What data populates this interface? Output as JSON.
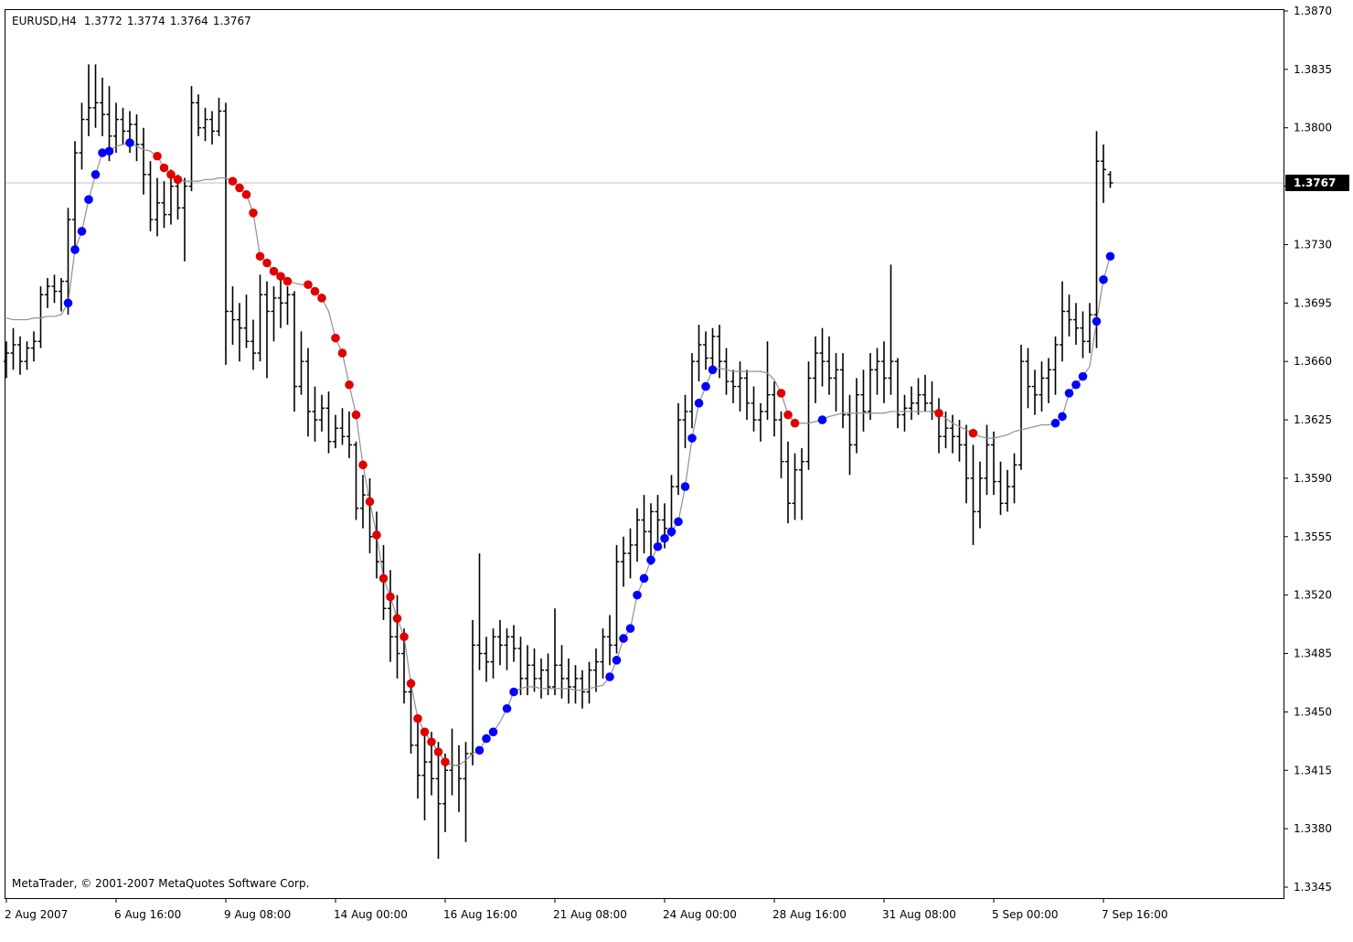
{
  "chart_data": {
    "type": "ohlc",
    "title": "EURUSD,H4",
    "copyright": "MetaTrader, © 2001-2007 MetaQuotes Software Corp.",
    "bar_color": "#000000",
    "price_line_color": "#c0c0c0",
    "ylim": [
      1.3345,
      1.387
    ],
    "yticks": [
      {
        "value": 1.387,
        "label": "1.3870"
      },
      1.3835,
      {
        "value": 1.38,
        "label": "1.3800"
      },
      1.3765,
      {
        "value": 1.373,
        "label": "1.3730"
      },
      1.3695,
      {
        "value": 1.366,
        "label": "1.3660"
      },
      1.3625,
      {
        "value": 1.359,
        "label": "1.3590"
      },
      1.3555,
      {
        "value": 1.352,
        "label": "1.3520"
      },
      1.3485,
      {
        "value": 1.345,
        "label": "1.3450"
      },
      1.3415,
      {
        "value": 1.338,
        "label": "1.3380"
      },
      1.3345
    ],
    "categories": [
      "2 Aug 2007",
      null,
      null,
      null,
      null,
      null,
      null,
      null,
      null,
      null,
      null,
      null,
      null,
      null,
      null,
      null,
      "6 Aug 16:00",
      null,
      null,
      null,
      null,
      null,
      null,
      null,
      null,
      null,
      null,
      null,
      null,
      null,
      null,
      null,
      "9 Aug 08:00",
      null,
      null,
      null,
      null,
      null,
      null,
      null,
      null,
      null,
      null,
      null,
      null,
      null,
      null,
      null,
      "14 Aug 00:00",
      null,
      null,
      null,
      null,
      null,
      null,
      null,
      null,
      null,
      null,
      null,
      null,
      null,
      null,
      null,
      "16 Aug 16:00",
      null,
      null,
      null,
      null,
      null,
      null,
      null,
      null,
      null,
      null,
      null,
      null,
      null,
      null,
      null,
      "21 Aug 08:00",
      null,
      null,
      null,
      null,
      null,
      null,
      null,
      null,
      null,
      null,
      null,
      null,
      null,
      null,
      null,
      "24 Aug 00:00",
      null,
      null,
      null,
      null,
      null,
      null,
      null,
      null,
      null,
      null,
      null,
      null,
      null,
      null,
      null,
      "28 Aug 16:00",
      null,
      null,
      null,
      null,
      null,
      null,
      null,
      null,
      null,
      null,
      null,
      null,
      null,
      null,
      null,
      "31 Aug 08:00",
      null,
      null,
      null,
      null,
      null,
      null,
      null,
      null,
      null,
      null,
      null,
      null,
      null,
      null,
      null,
      "5 Sep 00:00",
      null,
      null,
      null,
      null,
      null,
      null,
      null,
      null,
      null,
      null,
      null,
      null,
      null,
      null,
      null,
      "7 Sep 16:00",
      null
    ],
    "ohlc": [
      [
        1.366,
        1.3672,
        1.365,
        1.3665
      ],
      [
        1.3665,
        1.368,
        1.3655,
        1.367
      ],
      [
        1.367,
        1.3675,
        1.3652,
        1.366
      ],
      [
        1.366,
        1.3672,
        1.3655,
        1.3668
      ],
      [
        1.3668,
        1.3678,
        1.366,
        1.3672
      ],
      [
        1.3672,
        1.3705,
        1.3668,
        1.37
      ],
      [
        1.37,
        1.371,
        1.3692,
        1.3705
      ],
      [
        1.3705,
        1.3712,
        1.3695,
        1.3702
      ],
      [
        1.3702,
        1.371,
        1.369,
        1.3708
      ],
      [
        1.3708,
        1.3752,
        1.3688,
        1.3745
      ],
      [
        1.3745,
        1.3792,
        1.3728,
        1.3785
      ],
      [
        1.3785,
        1.3815,
        1.3775,
        1.3805
      ],
      [
        1.3805,
        1.3838,
        1.3795,
        1.3812
      ],
      [
        1.3812,
        1.3838,
        1.38,
        1.3815
      ],
      [
        1.3815,
        1.383,
        1.3795,
        1.3808
      ],
      [
        1.3808,
        1.3825,
        1.378,
        1.3795
      ],
      [
        1.3795,
        1.3815,
        1.3785,
        1.3805
      ],
      [
        1.3805,
        1.3812,
        1.379,
        1.3798
      ],
      [
        1.3798,
        1.381,
        1.3785,
        1.3802
      ],
      [
        1.3802,
        1.3808,
        1.378,
        1.379
      ],
      [
        1.379,
        1.38,
        1.376,
        1.3772
      ],
      [
        1.3772,
        1.378,
        1.3738,
        1.3745
      ],
      [
        1.3745,
        1.377,
        1.3735,
        1.3755
      ],
      [
        1.3755,
        1.3768,
        1.374,
        1.3748
      ],
      [
        1.3748,
        1.3775,
        1.3742,
        1.3765
      ],
      [
        1.3765,
        1.3772,
        1.3745,
        1.3752
      ],
      [
        1.3752,
        1.377,
        1.372,
        1.3765
      ],
      [
        1.3765,
        1.3825,
        1.3762,
        1.3815
      ],
      [
        1.3815,
        1.382,
        1.3795,
        1.38
      ],
      [
        1.38,
        1.3812,
        1.3792,
        1.3805
      ],
      [
        1.3805,
        1.381,
        1.379,
        1.3798
      ],
      [
        1.3798,
        1.3818,
        1.3795,
        1.381
      ],
      [
        1.381,
        1.3815,
        1.3658,
        1.369
      ],
      [
        1.369,
        1.3705,
        1.367,
        1.3685
      ],
      [
        1.3685,
        1.3695,
        1.366,
        1.368
      ],
      [
        1.368,
        1.37,
        1.3668,
        1.3672
      ],
      [
        1.3672,
        1.3685,
        1.3655,
        1.3665
      ],
      [
        1.3665,
        1.3712,
        1.366,
        1.37
      ],
      [
        1.37,
        1.3708,
        1.365,
        1.369
      ],
      [
        1.369,
        1.3705,
        1.3672,
        1.3698
      ],
      [
        1.3698,
        1.371,
        1.368,
        1.3695
      ],
      [
        1.3695,
        1.3705,
        1.3682,
        1.37
      ],
      [
        1.37,
        1.3702,
        1.363,
        1.3645
      ],
      [
        1.3645,
        1.3678,
        1.364,
        1.366
      ],
      [
        1.366,
        1.3668,
        1.3615,
        1.363
      ],
      [
        1.363,
        1.3645,
        1.3612,
        1.3625
      ],
      [
        1.3625,
        1.364,
        1.3618,
        1.3632
      ],
      [
        1.3632,
        1.3642,
        1.3605,
        1.3612
      ],
      [
        1.3612,
        1.3628,
        1.3608,
        1.362
      ],
      [
        1.362,
        1.3632,
        1.361,
        1.3615
      ],
      [
        1.3615,
        1.363,
        1.3602,
        1.361
      ],
      [
        1.361,
        1.3612,
        1.3565,
        1.3572
      ],
      [
        1.3572,
        1.3592,
        1.356,
        1.358
      ],
      [
        1.358,
        1.359,
        1.3545,
        1.3555
      ],
      [
        1.3555,
        1.357,
        1.353,
        1.354
      ],
      [
        1.354,
        1.355,
        1.3505,
        1.3512
      ],
      [
        1.3512,
        1.3535,
        1.348,
        1.3495
      ],
      [
        1.3495,
        1.352,
        1.347,
        1.3485
      ],
      [
        1.3485,
        1.35,
        1.3455,
        1.3462
      ],
      [
        1.3462,
        1.347,
        1.3425,
        1.343
      ],
      [
        1.343,
        1.3445,
        1.3398,
        1.3412
      ],
      [
        1.3412,
        1.344,
        1.3385,
        1.342
      ],
      [
        1.342,
        1.3438,
        1.34,
        1.341
      ],
      [
        1.341,
        1.3432,
        1.3362,
        1.3395
      ],
      [
        1.3395,
        1.3425,
        1.3378,
        1.3415
      ],
      [
        1.3415,
        1.344,
        1.34,
        1.3418
      ],
      [
        1.3418,
        1.343,
        1.339,
        1.341
      ],
      [
        1.341,
        1.3432,
        1.3372,
        1.3425
      ],
      [
        1.3425,
        1.3505,
        1.3418,
        1.349
      ],
      [
        1.349,
        1.3545,
        1.3475,
        1.3485
      ],
      [
        1.3485,
        1.3495,
        1.3468,
        1.348
      ],
      [
        1.348,
        1.35,
        1.347,
        1.3495
      ],
      [
        1.3495,
        1.3505,
        1.3478,
        1.349
      ],
      [
        1.349,
        1.35,
        1.3475,
        1.3495
      ],
      [
        1.3495,
        1.3502,
        1.348,
        1.3488
      ],
      [
        1.3488,
        1.3495,
        1.346,
        1.347
      ],
      [
        1.347,
        1.349,
        1.346,
        1.3478
      ],
      [
        1.3478,
        1.3488,
        1.3462,
        1.347
      ],
      [
        1.347,
        1.3482,
        1.3458,
        1.3475
      ],
      [
        1.3475,
        1.3485,
        1.346,
        1.3465
      ],
      [
        1.3465,
        1.3512,
        1.346,
        1.3478
      ],
      [
        1.3478,
        1.349,
        1.3458,
        1.347
      ],
      [
        1.347,
        1.3482,
        1.3455,
        1.3465
      ],
      [
        1.3465,
        1.3478,
        1.3455,
        1.347
      ],
      [
        1.347,
        1.3475,
        1.3452,
        1.3462
      ],
      [
        1.3462,
        1.348,
        1.3455,
        1.3475
      ],
      [
        1.3475,
        1.3488,
        1.3462,
        1.348
      ],
      [
        1.348,
        1.35,
        1.347,
        1.3495
      ],
      [
        1.3495,
        1.3508,
        1.3478,
        1.349
      ],
      [
        1.349,
        1.355,
        1.3485,
        1.354
      ],
      [
        1.354,
        1.3555,
        1.3525,
        1.3545
      ],
      [
        1.3545,
        1.356,
        1.353,
        1.355
      ],
      [
        1.355,
        1.3572,
        1.354,
        1.3565
      ],
      [
        1.3565,
        1.358,
        1.3545,
        1.3558
      ],
      [
        1.3558,
        1.3575,
        1.3538,
        1.357
      ],
      [
        1.357,
        1.358,
        1.355,
        1.3565
      ],
      [
        1.3565,
        1.3575,
        1.3548,
        1.356
      ],
      [
        1.356,
        1.3592,
        1.3555,
        1.3585
      ],
      [
        1.3585,
        1.3635,
        1.358,
        1.3625
      ],
      [
        1.3625,
        1.364,
        1.3608,
        1.363
      ],
      [
        1.363,
        1.3665,
        1.362,
        1.366
      ],
      [
        1.366,
        1.3682,
        1.3648,
        1.367
      ],
      [
        1.367,
        1.3678,
        1.3655,
        1.3662
      ],
      [
        1.3662,
        1.368,
        1.3655,
        1.3675
      ],
      [
        1.3675,
        1.3682,
        1.365,
        1.366
      ],
      [
        1.366,
        1.3668,
        1.364,
        1.3648
      ],
      [
        1.3648,
        1.3655,
        1.3635,
        1.3645
      ],
      [
        1.3645,
        1.366,
        1.363,
        1.365
      ],
      [
        1.365,
        1.3655,
        1.3625,
        1.3635
      ],
      [
        1.3635,
        1.3645,
        1.3618,
        1.3625
      ],
      [
        1.3625,
        1.3635,
        1.3612,
        1.363
      ],
      [
        1.363,
        1.3672,
        1.3625,
        1.364
      ],
      [
        1.364,
        1.3648,
        1.3615,
        1.3625
      ],
      [
        1.3625,
        1.363,
        1.359,
        1.36
      ],
      [
        1.36,
        1.3612,
        1.3563,
        1.3575
      ],
      [
        1.3575,
        1.3605,
        1.3565,
        1.3595
      ],
      [
        1.3595,
        1.3608,
        1.3565,
        1.36
      ],
      [
        1.36,
        1.366,
        1.3595,
        1.365
      ],
      [
        1.365,
        1.3675,
        1.3635,
        1.3665
      ],
      [
        1.3665,
        1.368,
        1.3645,
        1.366
      ],
      [
        1.366,
        1.3675,
        1.364,
        1.365
      ],
      [
        1.365,
        1.3665,
        1.363,
        1.3655
      ],
      [
        1.3655,
        1.3665,
        1.362,
        1.3628
      ],
      [
        1.3628,
        1.364,
        1.3592,
        1.361
      ],
      [
        1.361,
        1.365,
        1.3605,
        1.364
      ],
      [
        1.364,
        1.3655,
        1.3618,
        1.363
      ],
      [
        1.363,
        1.3665,
        1.3625,
        1.3655
      ],
      [
        1.3655,
        1.3668,
        1.364,
        1.366
      ],
      [
        1.366,
        1.3672,
        1.3635,
        1.365
      ],
      [
        1.365,
        1.3718,
        1.364,
        1.366
      ],
      [
        1.366,
        1.3662,
        1.362,
        1.3628
      ],
      [
        1.3628,
        1.364,
        1.3618,
        1.3632
      ],
      [
        1.3632,
        1.3645,
        1.3625,
        1.3635
      ],
      [
        1.3635,
        1.365,
        1.3628,
        1.364
      ],
      [
        1.364,
        1.3652,
        1.363,
        1.3635
      ],
      [
        1.3635,
        1.3648,
        1.3625,
        1.363
      ],
      [
        1.363,
        1.3638,
        1.3605,
        1.3615
      ],
      [
        1.3615,
        1.363,
        1.3608,
        1.362
      ],
      [
        1.362,
        1.3628,
        1.3605,
        1.3615
      ],
      [
        1.3615,
        1.3625,
        1.36,
        1.361
      ],
      [
        1.361,
        1.3622,
        1.3575,
        1.359
      ],
      [
        1.359,
        1.361,
        1.355,
        1.357
      ],
      [
        1.357,
        1.36,
        1.356,
        1.359
      ],
      [
        1.359,
        1.3622,
        1.358,
        1.361
      ],
      [
        1.361,
        1.3618,
        1.358,
        1.3588
      ],
      [
        1.3588,
        1.36,
        1.3568,
        1.3575
      ],
      [
        1.3575,
        1.3595,
        1.357,
        1.3585
      ],
      [
        1.3585,
        1.3605,
        1.3575,
        1.3598
      ],
      [
        1.3598,
        1.367,
        1.3595,
        1.366
      ],
      [
        1.366,
        1.3668,
        1.3632,
        1.3645
      ],
      [
        1.3645,
        1.3655,
        1.3628,
        1.364
      ],
      [
        1.364,
        1.366,
        1.363,
        1.365
      ],
      [
        1.365,
        1.3662,
        1.3635,
        1.3655
      ],
      [
        1.3655,
        1.3675,
        1.364,
        1.367
      ],
      [
        1.367,
        1.3708,
        1.366,
        1.369
      ],
      [
        1.369,
        1.37,
        1.3675,
        1.3685
      ],
      [
        1.3685,
        1.3695,
        1.367,
        1.368
      ],
      [
        1.368,
        1.369,
        1.3662,
        1.3672
      ],
      [
        1.3672,
        1.3695,
        1.3665,
        1.3688
      ],
      [
        1.3688,
        1.3798,
        1.3668,
        1.378
      ],
      [
        1.378,
        1.379,
        1.3755,
        1.3775
      ],
      [
        1.3772,
        1.3774,
        1.3764,
        1.3767
      ]
    ],
    "indicator": {
      "color": "#909090",
      "values": [
        1.3686,
        1.3685,
        1.3685,
        1.3685,
        1.3686,
        1.3686,
        1.3687,
        1.3687,
        1.3688,
        1.3695,
        1.3727,
        1.3738,
        1.3757,
        1.3772,
        1.3785,
        1.3786,
        1.3789,
        1.379,
        1.3791,
        1.3789,
        1.3787,
        1.3786,
        1.3783,
        1.3776,
        1.3772,
        1.3769,
        1.3768,
        1.3768,
        1.3768,
        1.3769,
        1.3769,
        1.377,
        1.377,
        1.3768,
        1.3764,
        1.376,
        1.3749,
        1.3723,
        1.3719,
        1.3714,
        1.3711,
        1.3708,
        1.3707,
        1.3706,
        1.3706,
        1.3702,
        1.3698,
        1.369,
        1.3674,
        1.3665,
        1.3646,
        1.3628,
        1.3598,
        1.3576,
        1.3556,
        1.353,
        1.3519,
        1.3506,
        1.3495,
        1.3467,
        1.3446,
        1.3438,
        1.3432,
        1.3426,
        1.342,
        1.3418,
        1.3418,
        1.3421,
        1.3425,
        1.3427,
        1.3434,
        1.3438,
        1.3444,
        1.3452,
        1.3462,
        1.3464,
        1.3465,
        1.3465,
        1.3464,
        1.3464,
        1.3464,
        1.3464,
        1.3464,
        1.3463,
        1.3463,
        1.3464,
        1.3465,
        1.3466,
        1.3471,
        1.3481,
        1.3494,
        1.35,
        1.352,
        1.353,
        1.3541,
        1.3549,
        1.3554,
        1.3558,
        1.3564,
        1.3585,
        1.3614,
        1.3635,
        1.3645,
        1.3655,
        1.3656,
        1.3655,
        1.3654,
        1.3654,
        1.3654,
        1.3654,
        1.3654,
        1.3653,
        1.3649,
        1.3641,
        1.3628,
        1.3623,
        1.3623,
        1.3623,
        1.3624,
        1.3625,
        1.3627,
        1.3628,
        1.3629,
        1.3629,
        1.3629,
        1.3629,
        1.3629,
        1.3629,
        1.3629,
        1.363,
        1.363,
        1.363,
        1.363,
        1.363,
        1.363,
        1.363,
        1.3629,
        1.3626,
        1.3623,
        1.3621,
        1.3619,
        1.3617,
        1.3615,
        1.3614,
        1.3614,
        1.3615,
        1.3616,
        1.3618,
        1.3619,
        1.362,
        1.3621,
        1.3622,
        1.3622,
        1.3623,
        1.3627,
        1.3641,
        1.3646,
        1.3651,
        1.3657,
        1.3684,
        1.3709,
        1.3723
      ]
    },
    "up_dots": {
      "color": "#0000ff",
      "bars": [
        9,
        10,
        11,
        12,
        13,
        14,
        15,
        18,
        69,
        70,
        71,
        73,
        74,
        88,
        89,
        90,
        91,
        92,
        93,
        94,
        95,
        96,
        97,
        98,
        99,
        100,
        101,
        102,
        103,
        119,
        153,
        154,
        155,
        156,
        157,
        159,
        160,
        161
      ]
    },
    "down_dots": {
      "color": "#e00000",
      "bars": [
        22,
        23,
        24,
        25,
        33,
        34,
        35,
        36,
        37,
        38,
        39,
        40,
        41,
        44,
        45,
        46,
        48,
        49,
        50,
        51,
        52,
        53,
        54,
        55,
        56,
        57,
        58,
        59,
        60,
        61,
        62,
        63,
        64,
        113,
        114,
        115,
        136,
        141
      ]
    }
  }
}
